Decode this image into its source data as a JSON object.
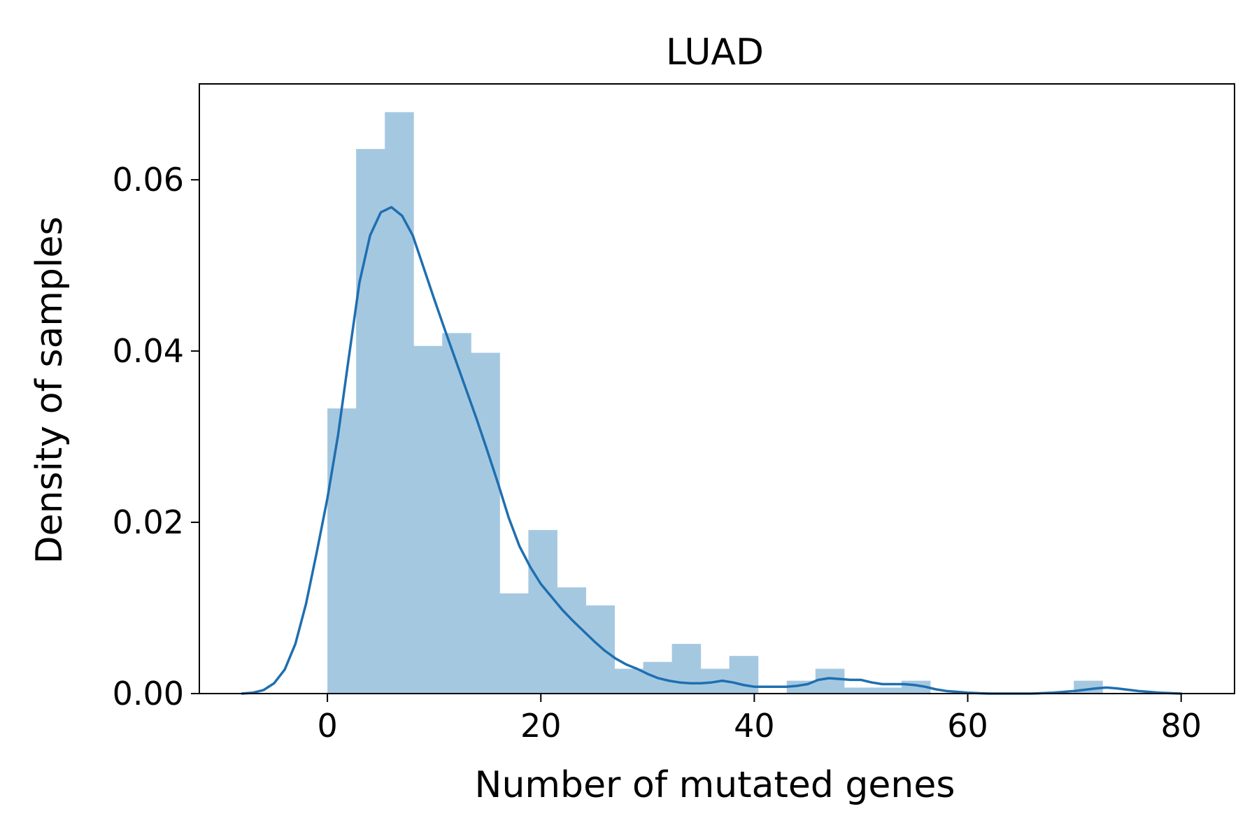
{
  "chart_data": {
    "type": "bar",
    "subtype": "histogram_with_kde",
    "title": "LUAD",
    "xlabel": "Number of mutated genes",
    "ylabel": "Density of samples",
    "xlim": [
      -12,
      85
    ],
    "ylim": [
      0,
      0.0712
    ],
    "x_ticks": [
      0,
      20,
      40,
      60,
      80
    ],
    "x_tick_labels": [
      "0",
      "20",
      "40",
      "60",
      "80"
    ],
    "y_ticks": [
      0.0,
      0.02,
      0.04,
      0.06
    ],
    "y_tick_labels": [
      "0.00",
      "0.02",
      "0.04",
      "0.06"
    ],
    "grid": false,
    "legend": "none",
    "colors": {
      "bars": "#a5c8e1",
      "kde": "#1f6fb0",
      "axes": "#000000"
    },
    "bin_width": 2.69,
    "bins": [
      {
        "x0": 0.0,
        "x1": 2.69,
        "density": 0.0333
      },
      {
        "x0": 2.69,
        "x1": 5.38,
        "density": 0.0636
      },
      {
        "x0": 5.38,
        "x1": 8.07,
        "density": 0.0679
      },
      {
        "x0": 8.07,
        "x1": 10.76,
        "density": 0.0406
      },
      {
        "x0": 10.76,
        "x1": 13.45,
        "density": 0.0421
      },
      {
        "x0": 13.45,
        "x1": 16.14,
        "density": 0.0398
      },
      {
        "x0": 16.14,
        "x1": 18.83,
        "density": 0.0117
      },
      {
        "x0": 18.83,
        "x1": 21.52,
        "density": 0.0191
      },
      {
        "x0": 21.52,
        "x1": 24.21,
        "density": 0.0124
      },
      {
        "x0": 24.21,
        "x1": 26.9,
        "density": 0.0103
      },
      {
        "x0": 26.9,
        "x1": 29.59,
        "density": 0.0029
      },
      {
        "x0": 29.59,
        "x1": 32.28,
        "density": 0.0037
      },
      {
        "x0": 32.28,
        "x1": 34.97,
        "density": 0.0058
      },
      {
        "x0": 34.97,
        "x1": 37.66,
        "density": 0.0029
      },
      {
        "x0": 37.66,
        "x1": 40.35,
        "density": 0.0044
      },
      {
        "x0": 40.35,
        "x1": 43.04,
        "density": 0.0
      },
      {
        "x0": 43.04,
        "x1": 45.73,
        "density": 0.0015
      },
      {
        "x0": 45.73,
        "x1": 48.42,
        "density": 0.0029
      },
      {
        "x0": 48.42,
        "x1": 51.11,
        "density": 0.0007
      },
      {
        "x0": 51.11,
        "x1": 53.8,
        "density": 0.0007
      },
      {
        "x0": 53.8,
        "x1": 56.49,
        "density": 0.0015
      },
      {
        "x0": 56.49,
        "x1": 59.18,
        "density": 0.0
      },
      {
        "x0": 59.18,
        "x1": 61.87,
        "density": 0.0
      },
      {
        "x0": 61.87,
        "x1": 64.56,
        "density": 0.0
      },
      {
        "x0": 64.56,
        "x1": 67.25,
        "density": 0.0
      },
      {
        "x0": 67.25,
        "x1": 69.94,
        "density": 0.0
      },
      {
        "x0": 69.94,
        "x1": 72.63,
        "density": 0.0015
      }
    ],
    "kde": {
      "x": [
        -8,
        -7,
        -6,
        -5,
        -4,
        -3,
        -2,
        -1,
        0,
        1,
        2,
        3,
        4,
        5,
        6,
        7,
        8,
        9,
        10,
        11,
        12,
        13,
        14,
        15,
        16,
        17,
        18,
        19,
        20,
        21,
        22,
        23,
        24,
        25,
        26,
        27,
        28,
        29,
        30,
        31,
        32,
        33,
        34,
        35,
        36,
        37,
        38,
        39,
        40,
        41,
        42,
        43,
        44,
        45,
        46,
        47,
        48,
        49,
        50,
        51,
        52,
        53,
        54,
        55,
        56,
        57,
        58,
        59,
        60,
        62,
        64,
        66,
        68,
        70,
        72,
        73,
        74,
        76,
        78,
        80
      ],
      "y": [
        0.0,
        0.0001,
        0.0004,
        0.0012,
        0.0028,
        0.0058,
        0.0105,
        0.0165,
        0.0228,
        0.0302,
        0.0392,
        0.048,
        0.0535,
        0.0562,
        0.0568,
        0.0558,
        0.0535,
        0.0498,
        0.0461,
        0.0425,
        0.039,
        0.0355,
        0.032,
        0.0283,
        0.0245,
        0.0205,
        0.0172,
        0.0148,
        0.0128,
        0.0113,
        0.0098,
        0.0085,
        0.0073,
        0.0061,
        0.005,
        0.0041,
        0.0034,
        0.0029,
        0.0023,
        0.0018,
        0.0015,
        0.0013,
        0.0012,
        0.0012,
        0.0013,
        0.0015,
        0.0013,
        0.001,
        0.0008,
        0.0008,
        0.0008,
        0.0008,
        0.0009,
        0.0011,
        0.0016,
        0.0018,
        0.0017,
        0.0016,
        0.0016,
        0.0013,
        0.0011,
        0.0011,
        0.0011,
        0.001,
        0.0008,
        0.0005,
        0.0003,
        0.0002,
        0.0001,
        0.0,
        0.0,
        0.0,
        0.0001,
        0.0003,
        0.0006,
        0.0007,
        0.0006,
        0.0003,
        0.0001,
        0.0
      ]
    }
  }
}
